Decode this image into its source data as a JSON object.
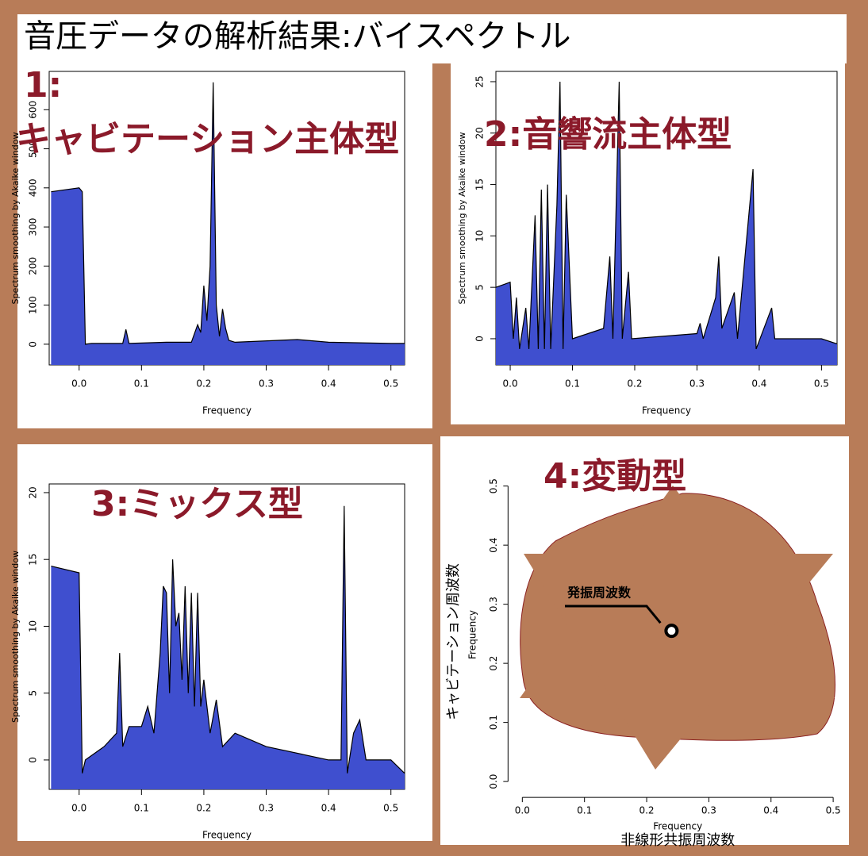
{
  "title": "音圧データの解析結果:バイスペクトル",
  "chart_data": [
    {
      "type": "area",
      "title": [
        "1:",
        "キャビテーション主体型"
      ],
      "xlabel": "Frequency",
      "ylabel": "Spectrum smoothing by Akaike window",
      "color": "#3f4fcf",
      "x": [
        -0.045,
        0,
        0.005,
        0.01,
        0.02,
        0.07,
        0.075,
        0.08,
        0.14,
        0.18,
        0.19,
        0.195,
        0.2,
        0.205,
        0.21,
        0.215,
        0.22,
        0.225,
        0.23,
        0.235,
        0.24,
        0.25,
        0.35,
        0.4,
        0.5,
        0.522
      ],
      "values": [
        390,
        400,
        390,
        0,
        2,
        2,
        38,
        2,
        5,
        5,
        50,
        30,
        150,
        60,
        200,
        670,
        100,
        20,
        90,
        40,
        10,
        5,
        12,
        5,
        2,
        2
      ],
      "xlim": [
        -0.048,
        0.522
      ],
      "xticks": [
        {
          "value": 0,
          "label": "0.0"
        },
        0.1,
        0.2,
        0.3,
        0.4,
        0.5
      ],
      "ylim": [
        -53,
        698
      ],
      "yticks": [
        0,
        100,
        200,
        300,
        400,
        500,
        600
      ]
    },
    {
      "type": "area",
      "title": [
        "2:音響流主体型"
      ],
      "xlabel": "Frequency",
      "ylabel": "Spectrum smoothing by Akaike window",
      "color": "#3f4fcf",
      "x": [
        -0.023,
        0,
        0.005,
        0.01,
        0.015,
        0.025,
        0.03,
        0.04,
        0.045,
        0.05,
        0.055,
        0.06,
        0.065,
        0.075,
        0.08,
        0.085,
        0.09,
        0.1,
        0.15,
        0.16,
        0.165,
        0.175,
        0.18,
        0.19,
        0.195,
        0.3,
        0.305,
        0.31,
        0.33,
        0.335,
        0.34,
        0.36,
        0.365,
        0.39,
        0.395,
        0.42,
        0.425,
        0.5,
        0.525
      ],
      "values": [
        5,
        5.5,
        0,
        4,
        -1,
        3,
        -1,
        12,
        -1,
        14.5,
        -1,
        15,
        -1,
        13,
        25,
        -1,
        14,
        0,
        1,
        8,
        0,
        25,
        0,
        6.5,
        0,
        0.5,
        1.5,
        0,
        4,
        8,
        1,
        4.5,
        0,
        16.5,
        -1,
        3,
        0,
        0,
        -0.5
      ],
      "xlim": [
        -0.023,
        0.525
      ],
      "xticks": [
        {
          "value": 0,
          "label": "0.0"
        },
        0.1,
        0.2,
        0.3,
        0.4,
        0.5
      ],
      "ylim": [
        -2.55,
        26
      ],
      "yticks": [
        0,
        5,
        10,
        15,
        20,
        25
      ]
    },
    {
      "type": "area",
      "title": [
        "3:ミックス型"
      ],
      "xlabel": "Frequency",
      "ylabel": "Spectrum smoothing by Akaike window",
      "color": "#3f4fcf",
      "x": [
        -0.045,
        0,
        0.005,
        0.01,
        0.04,
        0.06,
        0.065,
        0.07,
        0.08,
        0.1,
        0.11,
        0.12,
        0.13,
        0.135,
        0.14,
        0.145,
        0.15,
        0.155,
        0.16,
        0.165,
        0.17,
        0.175,
        0.18,
        0.185,
        0.19,
        0.195,
        0.2,
        0.21,
        0.22,
        0.23,
        0.25,
        0.3,
        0.4,
        0.42,
        0.425,
        0.43,
        0.44,
        0.45,
        0.46,
        0.5,
        0.522
      ],
      "values": [
        14.5,
        14,
        -1,
        0,
        1,
        2,
        8,
        1,
        2.5,
        2.5,
        4,
        2,
        8,
        13,
        12.5,
        5,
        15,
        10,
        11,
        6,
        13,
        5,
        12.5,
        4,
        12.5,
        4,
        6,
        2,
        4.5,
        1,
        2,
        1,
        0,
        0,
        19,
        -1,
        2,
        3,
        0,
        0,
        -1
      ],
      "xlim": [
        -0.048,
        0.522
      ],
      "xticks": [
        {
          "value": 0,
          "label": "0.0"
        },
        0.1,
        0.2,
        0.3,
        0.4,
        0.5
      ],
      "ylim": [
        -2.2,
        20.65
      ],
      "yticks": [
        0,
        5,
        10,
        15,
        20
      ]
    },
    {
      "type": "scatter",
      "title": [
        "4:変動型"
      ],
      "xlabel": "Frequency",
      "ylabel": "Frequency",
      "xlabel2": "非線形共振周波数",
      "ylabel2": "キャビテーション周波数",
      "point_label": "発振周波数",
      "color": "#000000",
      "x": [
        0.24
      ],
      "values": [
        0.255
      ],
      "xlim": [
        -0.017,
        0.519
      ],
      "xticks": [
        {
          "value": 0,
          "label": "0.0"
        },
        0.1,
        0.2,
        0.3,
        0.4,
        0.5
      ],
      "ylim": [
        -0.02,
        0.517
      ],
      "yticks": [
        {
          "value": 0,
          "label": "0.0"
        },
        0.1,
        0.2,
        0.3,
        0.4,
        0.5
      ]
    }
  ]
}
